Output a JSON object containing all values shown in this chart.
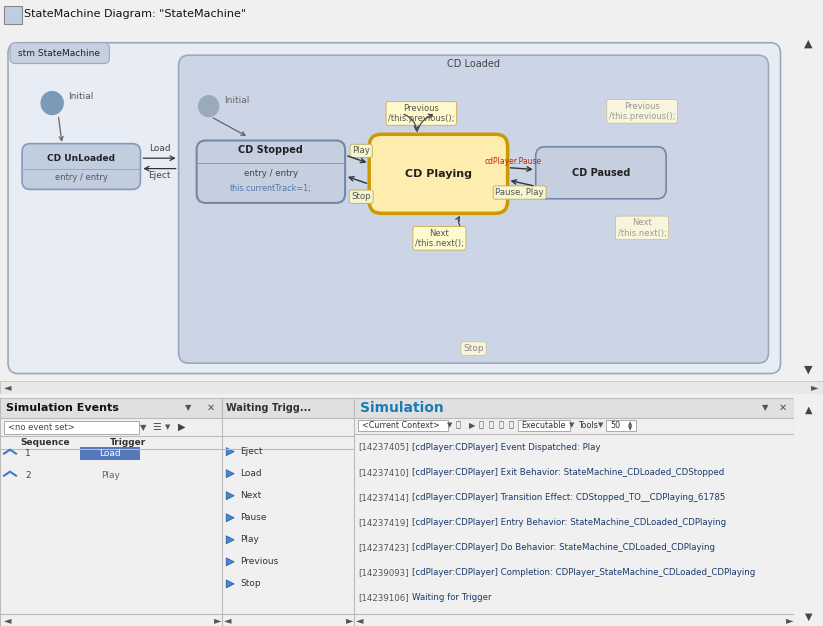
{
  "title_bar": "StateMachine Diagram: \"StateMachine\"",
  "bg_color": "#f0f0f0",
  "stm_label": "stm StateMachine",
  "cd_loaded_label": "CD Loaded",
  "cd_unloaded_label": "CD UnLoaded",
  "cd_stopped_label": "CD Stopped",
  "cd_playing_label": "CD Playing",
  "cd_paused_label": "CD Paused",
  "sim_events_title": "Simulation Events",
  "sim_title": "Simulation",
  "log_entries": [
    [
      "[14237405]",
      "[cdPlayer:CDPlayer] Event Dispatched: Play"
    ],
    [
      "[14237410]",
      "[cdPlayer:CDPlayer] Exit Behavior: StateMachine_CDLoaded_CDStopped"
    ],
    [
      "[14237414]",
      "[cdPlayer:CDPlayer] Transition Effect: CDStopped_TO__CDPlaying_61785"
    ],
    [
      "[14237419]",
      "[cdPlayer:CDPlayer] Entry Behavior: StateMachine_CDLoaded_CDPlaying"
    ],
    [
      "[14237423]",
      "[cdPlayer:CDPlayer] Do Behavior: StateMachine_CDLoaded_CDPlaying"
    ],
    [
      "[14239093]",
      "[cdPlayer:CDPlayer] Completion: CDPlayer_StateMachine_CDLoaded_CDPlaying"
    ],
    [
      "[14239106]",
      "Waiting for Trigger"
    ]
  ],
  "trigger_items": [
    "Eject",
    "Load",
    "Next",
    "Pause",
    "Play",
    "Previous",
    "Stop"
  ],
  "seq_items": [
    [
      "1",
      "Load"
    ],
    [
      "2",
      "Play"
    ]
  ],
  "blue_title": "#1c7bb5",
  "log_ts_color": "#555555",
  "log_msg_color": "#1a3a6a"
}
